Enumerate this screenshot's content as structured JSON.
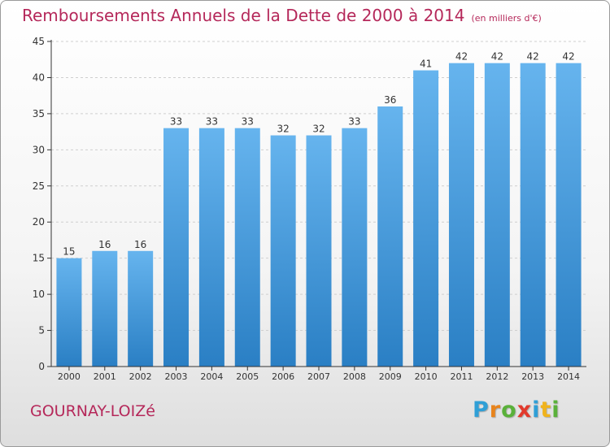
{
  "chart_data": {
    "type": "bar",
    "title": "Remboursements Annuels de la Dette de 2000 à 2014",
    "subtitle": "(en milliers d'€)",
    "categories": [
      "2000",
      "2001",
      "2002",
      "2003",
      "2004",
      "2005",
      "2006",
      "2007",
      "2008",
      "2009",
      "2010",
      "2011",
      "2012",
      "2013",
      "2014"
    ],
    "values": [
      15,
      16,
      16,
      33,
      33,
      33,
      32,
      32,
      33,
      36,
      41,
      42,
      42,
      42,
      42
    ],
    "ylim": [
      0,
      45
    ],
    "yticks": [
      0,
      5,
      10,
      15,
      20,
      25,
      30,
      35,
      40,
      45
    ],
    "xlabel": "",
    "ylabel": "",
    "grid": true,
    "bar_color": "#3f95d8",
    "bar_color_light": "#66b4ee"
  },
  "footer": {
    "town": "GOURNAY-LOIZé",
    "logo_letters": [
      {
        "ch": "P",
        "color": "#2f9fd6"
      },
      {
        "ch": "r",
        "color": "#e8841c"
      },
      {
        "ch": "o",
        "color": "#5ab13a"
      },
      {
        "ch": "x",
        "color": "#e23a2c"
      },
      {
        "ch": "i",
        "color": "#2f9fd6"
      },
      {
        "ch": "t",
        "color": "#f0b31c"
      },
      {
        "ch": "i",
        "color": "#5ab13a"
      }
    ]
  },
  "colors": {
    "title": "#b5285a",
    "axis": "#333333",
    "grid": "#cfcfcf"
  }
}
